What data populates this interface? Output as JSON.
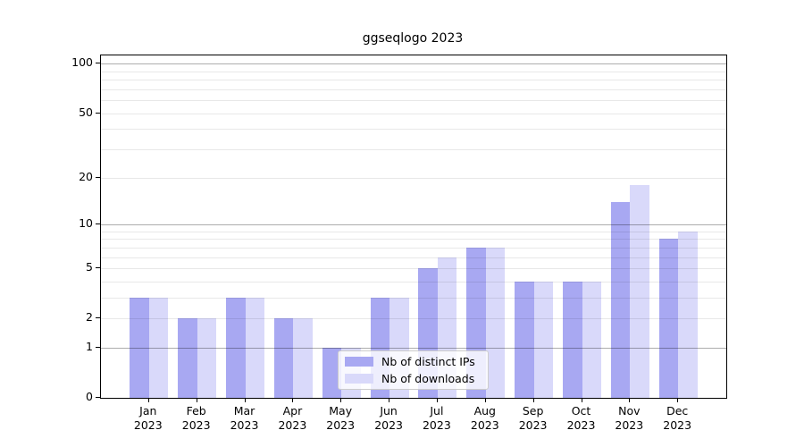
{
  "chart_data": {
    "type": "bar",
    "title": "ggseqlogo 2023",
    "categories": [
      "Jan",
      "Feb",
      "Mar",
      "Apr",
      "May",
      "Jun",
      "Jul",
      "Aug",
      "Sep",
      "Oct",
      "Nov",
      "Dec"
    ],
    "year_label": "2023",
    "series": [
      {
        "name": "Nb of distinct IPs",
        "color": "#a8a8f2",
        "values": [
          3,
          2,
          3,
          2,
          1,
          3,
          5,
          7,
          4,
          4,
          14,
          8
        ]
      },
      {
        "name": "Nb of downloads",
        "color": "#d9d9fa",
        "values": [
          3,
          2,
          3,
          2,
          1,
          3,
          6,
          7,
          4,
          4,
          18,
          9
        ]
      }
    ],
    "yscale": "log1p",
    "ylim": [
      0,
      112.5
    ],
    "y_tick_values": [
      0,
      1,
      2,
      5,
      10,
      20,
      50,
      100
    ],
    "y_major_gridlines": [
      1,
      10,
      100
    ],
    "y_minor_gridlines": [
      2,
      3,
      4,
      5,
      6,
      7,
      8,
      9,
      20,
      30,
      40,
      50,
      60,
      70,
      80,
      90
    ],
    "grid": true,
    "legend_position": "lower center",
    "colors": {
      "axis": "#000000",
      "major_grid": "rgba(0,0,0,0.32)",
      "minor_grid": "rgba(0,0,0,0.09)",
      "background": "#ffffff"
    }
  }
}
